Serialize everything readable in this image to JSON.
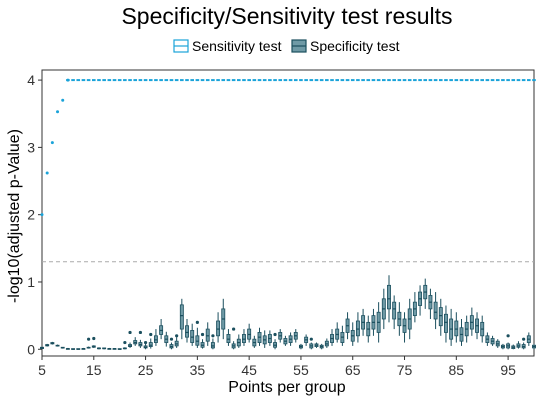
{
  "chart_data": {
    "type": "boxplot",
    "title": "Specificity/Sensitivity test results",
    "xlabel": "Points per group",
    "ylabel": "-log10(adjusted p-Value)",
    "xlim": [
      5,
      100
    ],
    "ylim": [
      -0.1,
      4.15
    ],
    "x_ticks": [
      5,
      15,
      25,
      35,
      45,
      55,
      65,
      75,
      85,
      95
    ],
    "y_ticks": [
      0,
      1,
      2,
      3,
      4
    ],
    "reference_line": {
      "y": 1.3,
      "style": "dashed",
      "color": "#aaaaaa"
    },
    "legend": {
      "position": "top"
    },
    "series": [
      {
        "name": "Sensitivity test",
        "color": "#1aa3d9",
        "fill": "#ffffff",
        "points": [
          {
            "x": 5,
            "y": 2.0
          },
          {
            "x": 6,
            "y": 2.62
          },
          {
            "x": 7,
            "y": 3.07
          },
          {
            "x": 8,
            "y": 3.53
          },
          {
            "x": 9,
            "y": 3.7
          },
          {
            "x": 10,
            "y": 4.0
          }
        ],
        "plateau": {
          "y": 4.0,
          "from": 10,
          "to": 100
        }
      },
      {
        "name": "Specificity test",
        "color": "#1b4f5e",
        "fill": "#6f9aa6",
        "boxes": [
          {
            "x": 5,
            "min": 0.01,
            "q1": 0.01,
            "median": 0.02,
            "q3": 0.03,
            "max": 0.04
          },
          {
            "x": 6,
            "min": 0.04,
            "q1": 0.05,
            "median": 0.06,
            "q3": 0.07,
            "max": 0.08
          },
          {
            "x": 7,
            "min": 0.07,
            "q1": 0.08,
            "median": 0.09,
            "q3": 0.1,
            "max": 0.11
          },
          {
            "x": 8,
            "min": 0.04,
            "q1": 0.05,
            "median": 0.05,
            "q3": 0.06,
            "max": 0.07
          },
          {
            "x": 9,
            "min": 0.01,
            "q1": 0.02,
            "median": 0.02,
            "q3": 0.03,
            "max": 0.03
          },
          {
            "x": 10,
            "min": 0.0,
            "q1": 0.0,
            "median": 0.01,
            "q3": 0.01,
            "max": 0.02
          },
          {
            "x": 11,
            "min": 0.0,
            "q1": 0.0,
            "median": 0.0,
            "q3": 0.01,
            "max": 0.01
          },
          {
            "x": 12,
            "min": 0.0,
            "q1": 0.0,
            "median": 0.0,
            "q3": 0.01,
            "max": 0.01
          },
          {
            "x": 13,
            "min": 0.0,
            "q1": 0.0,
            "median": 0.01,
            "q3": 0.01,
            "max": 0.02
          },
          {
            "x": 14,
            "min": 0.01,
            "q1": 0.02,
            "median": 0.02,
            "q3": 0.03,
            "max": 0.04,
            "outliers": [
              0.15
            ]
          },
          {
            "x": 15,
            "min": 0.02,
            "q1": 0.03,
            "median": 0.04,
            "q3": 0.05,
            "max": 0.06,
            "outliers": [
              0.16
            ]
          },
          {
            "x": 16,
            "min": 0.0,
            "q1": 0.01,
            "median": 0.01,
            "q3": 0.02,
            "max": 0.03
          },
          {
            "x": 17,
            "min": 0.0,
            "q1": 0.01,
            "median": 0.01,
            "q3": 0.02,
            "max": 0.02
          },
          {
            "x": 18,
            "min": 0.0,
            "q1": 0.0,
            "median": 0.01,
            "q3": 0.01,
            "max": 0.02
          },
          {
            "x": 19,
            "min": 0.0,
            "q1": 0.0,
            "median": 0.01,
            "q3": 0.01,
            "max": 0.01
          },
          {
            "x": 20,
            "min": 0.0,
            "q1": 0.0,
            "median": 0.0,
            "q3": 0.01,
            "max": 0.01
          },
          {
            "x": 21,
            "min": 0.0,
            "q1": 0.01,
            "median": 0.01,
            "q3": 0.02,
            "max": 0.03,
            "outliers": [
              0.1
            ]
          },
          {
            "x": 22,
            "min": 0.02,
            "q1": 0.04,
            "median": 0.05,
            "q3": 0.07,
            "max": 0.1,
            "outliers": [
              0.25
            ]
          },
          {
            "x": 23,
            "min": 0.05,
            "q1": 0.08,
            "median": 0.1,
            "q3": 0.13,
            "max": 0.18
          },
          {
            "x": 24,
            "min": 0.02,
            "q1": 0.05,
            "median": 0.07,
            "q3": 0.1,
            "max": 0.14,
            "outliers": [
              0.25
            ]
          },
          {
            "x": 25,
            "min": 0.0,
            "q1": 0.02,
            "median": 0.03,
            "q3": 0.05,
            "max": 0.08,
            "outliers": [
              0.1
            ]
          },
          {
            "x": 26,
            "min": 0.01,
            "q1": 0.04,
            "median": 0.06,
            "q3": 0.1,
            "max": 0.16,
            "outliers": [
              0.22
            ]
          },
          {
            "x": 27,
            "min": 0.05,
            "q1": 0.1,
            "median": 0.14,
            "q3": 0.2,
            "max": 0.3
          },
          {
            "x": 28,
            "min": 0.15,
            "q1": 0.22,
            "median": 0.28,
            "q3": 0.35,
            "max": 0.45
          },
          {
            "x": 29,
            "min": 0.04,
            "q1": 0.1,
            "median": 0.15,
            "q3": 0.2,
            "max": 0.26
          },
          {
            "x": 30,
            "min": 0.0,
            "q1": 0.02,
            "median": 0.04,
            "q3": 0.07,
            "max": 0.1,
            "outliers": [
              0.15
            ]
          },
          {
            "x": 31,
            "min": 0.02,
            "q1": 0.05,
            "median": 0.08,
            "q3": 0.12,
            "max": 0.18,
            "outliers": [
              0.2
            ]
          },
          {
            "x": 32,
            "min": 0.15,
            "q1": 0.3,
            "median": 0.5,
            "q3": 0.66,
            "max": 0.75
          },
          {
            "x": 33,
            "min": 0.1,
            "q1": 0.18,
            "median": 0.25,
            "q3": 0.35,
            "max": 0.45
          },
          {
            "x": 34,
            "min": 0.05,
            "q1": 0.1,
            "median": 0.18,
            "q3": 0.28,
            "max": 0.38
          },
          {
            "x": 35,
            "min": 0.02,
            "q1": 0.06,
            "median": 0.12,
            "q3": 0.2,
            "max": 0.32,
            "outliers": [
              0.4
            ]
          },
          {
            "x": 36,
            "min": 0.01,
            "q1": 0.03,
            "median": 0.06,
            "q3": 0.1,
            "max": 0.15,
            "outliers": [
              0.22
            ]
          },
          {
            "x": 37,
            "min": 0.05,
            "q1": 0.12,
            "median": 0.2,
            "q3": 0.3,
            "max": 0.4
          },
          {
            "x": 38,
            "min": 0.0,
            "q1": 0.02,
            "median": 0.05,
            "q3": 0.1,
            "max": 0.16,
            "outliers": [
              0.2
            ]
          },
          {
            "x": 39,
            "min": 0.1,
            "q1": 0.2,
            "median": 0.3,
            "q3": 0.42,
            "max": 0.55
          },
          {
            "x": 40,
            "min": 0.15,
            "q1": 0.3,
            "median": 0.45,
            "q3": 0.6,
            "max": 0.75
          },
          {
            "x": 41,
            "min": 0.05,
            "q1": 0.1,
            "median": 0.15,
            "q3": 0.22,
            "max": 0.3
          },
          {
            "x": 42,
            "min": 0.0,
            "q1": 0.02,
            "median": 0.05,
            "q3": 0.08,
            "max": 0.12,
            "outliers": [
              0.3
            ]
          },
          {
            "x": 43,
            "min": 0.02,
            "q1": 0.05,
            "median": 0.1,
            "q3": 0.15,
            "max": 0.22
          },
          {
            "x": 44,
            "min": 0.05,
            "q1": 0.1,
            "median": 0.15,
            "q3": 0.22,
            "max": 0.3
          },
          {
            "x": 45,
            "min": 0.1,
            "q1": 0.15,
            "median": 0.22,
            "q3": 0.3,
            "max": 0.38
          },
          {
            "x": 46,
            "min": 0.02,
            "q1": 0.05,
            "median": 0.1,
            "q3": 0.15,
            "max": 0.2
          },
          {
            "x": 47,
            "min": 0.05,
            "q1": 0.1,
            "median": 0.18,
            "q3": 0.25,
            "max": 0.32
          },
          {
            "x": 48,
            "min": 0.02,
            "q1": 0.08,
            "median": 0.14,
            "q3": 0.2,
            "max": 0.28
          },
          {
            "x": 49,
            "min": 0.05,
            "q1": 0.1,
            "median": 0.16,
            "q3": 0.22,
            "max": 0.28
          },
          {
            "x": 50,
            "min": 0.0,
            "q1": 0.03,
            "median": 0.06,
            "q3": 0.1,
            "max": 0.15,
            "outliers": [
              0.22
            ]
          },
          {
            "x": 51,
            "min": 0.1,
            "q1": 0.15,
            "median": 0.2,
            "q3": 0.25,
            "max": 0.3
          },
          {
            "x": 52,
            "min": 0.05,
            "q1": 0.08,
            "median": 0.12,
            "q3": 0.16,
            "max": 0.2
          },
          {
            "x": 53,
            "min": 0.05,
            "q1": 0.1,
            "median": 0.15,
            "q3": 0.2,
            "max": 0.25
          },
          {
            "x": 54,
            "min": 0.1,
            "q1": 0.15,
            "median": 0.2,
            "q3": 0.25,
            "max": 0.3
          },
          {
            "x": 55,
            "min": 0.0,
            "q1": 0.02,
            "median": 0.04,
            "q3": 0.06,
            "max": 0.08
          },
          {
            "x": 56,
            "min": 0.05,
            "q1": 0.1,
            "median": 0.14,
            "q3": 0.18,
            "max": 0.22
          },
          {
            "x": 57,
            "min": 0.0,
            "q1": 0.02,
            "median": 0.05,
            "q3": 0.08,
            "max": 0.1,
            "outliers": [
              0.15
            ]
          },
          {
            "x": 58,
            "min": 0.02,
            "q1": 0.04,
            "median": 0.06,
            "q3": 0.08,
            "max": 0.1
          },
          {
            "x": 59,
            "min": 0.0,
            "q1": 0.02,
            "median": 0.04,
            "q3": 0.06,
            "max": 0.08
          },
          {
            "x": 60,
            "min": 0.02,
            "q1": 0.05,
            "median": 0.08,
            "q3": 0.12,
            "max": 0.16
          },
          {
            "x": 61,
            "min": 0.05,
            "q1": 0.1,
            "median": 0.16,
            "q3": 0.22,
            "max": 0.3
          },
          {
            "x": 62,
            "min": 0.1,
            "q1": 0.15,
            "median": 0.22,
            "q3": 0.3,
            "max": 0.4
          },
          {
            "x": 63,
            "min": 0.05,
            "q1": 0.1,
            "median": 0.18,
            "q3": 0.25,
            "max": 0.35
          },
          {
            "x": 64,
            "min": 0.15,
            "q1": 0.25,
            "median": 0.35,
            "q3": 0.45,
            "max": 0.55
          },
          {
            "x": 65,
            "min": 0.05,
            "q1": 0.12,
            "median": 0.2,
            "q3": 0.28,
            "max": 0.4
          },
          {
            "x": 66,
            "min": 0.1,
            "q1": 0.2,
            "median": 0.3,
            "q3": 0.42,
            "max": 0.55
          },
          {
            "x": 67,
            "min": 0.2,
            "q1": 0.3,
            "median": 0.4,
            "q3": 0.5,
            "max": 0.6
          },
          {
            "x": 68,
            "min": 0.1,
            "q1": 0.2,
            "median": 0.3,
            "q3": 0.4,
            "max": 0.5
          },
          {
            "x": 69,
            "min": 0.2,
            "q1": 0.3,
            "median": 0.4,
            "q3": 0.5,
            "max": 0.6
          },
          {
            "x": 70,
            "min": 0.1,
            "q1": 0.25,
            "median": 0.4,
            "q3": 0.55,
            "max": 0.7
          },
          {
            "x": 71,
            "min": 0.3,
            "q1": 0.45,
            "median": 0.6,
            "q3": 0.75,
            "max": 0.9
          },
          {
            "x": 72,
            "min": 0.4,
            "q1": 0.6,
            "median": 0.75,
            "q3": 0.95,
            "max": 1.1
          },
          {
            "x": 73,
            "min": 0.3,
            "q1": 0.45,
            "median": 0.6,
            "q3": 0.7,
            "max": 0.8
          },
          {
            "x": 74,
            "min": 0.2,
            "q1": 0.35,
            "median": 0.45,
            "q3": 0.55,
            "max": 0.7
          },
          {
            "x": 75,
            "min": 0.1,
            "q1": 0.25,
            "median": 0.35,
            "q3": 0.45,
            "max": 0.55
          },
          {
            "x": 76,
            "min": 0.15,
            "q1": 0.3,
            "median": 0.45,
            "q3": 0.6,
            "max": 0.75
          },
          {
            "x": 77,
            "min": 0.4,
            "q1": 0.5,
            "median": 0.6,
            "q3": 0.7,
            "max": 0.85
          },
          {
            "x": 78,
            "min": 0.5,
            "q1": 0.65,
            "median": 0.75,
            "q3": 0.85,
            "max": 0.95
          },
          {
            "x": 79,
            "min": 0.6,
            "q1": 0.75,
            "median": 0.85,
            "q3": 0.95,
            "max": 1.05
          },
          {
            "x": 80,
            "min": 0.45,
            "q1": 0.6,
            "median": 0.7,
            "q3": 0.8,
            "max": 0.9
          },
          {
            "x": 81,
            "min": 0.3,
            "q1": 0.45,
            "median": 0.55,
            "q3": 0.7,
            "max": 0.85
          },
          {
            "x": 82,
            "min": 0.2,
            "q1": 0.35,
            "median": 0.5,
            "q3": 0.62,
            "max": 0.75
          },
          {
            "x": 83,
            "min": 0.1,
            "q1": 0.25,
            "median": 0.4,
            "q3": 0.52,
            "max": 0.65
          },
          {
            "x": 84,
            "min": 0.05,
            "q1": 0.15,
            "median": 0.3,
            "q3": 0.45,
            "max": 0.6
          },
          {
            "x": 85,
            "min": 0.1,
            "q1": 0.2,
            "median": 0.3,
            "q3": 0.42,
            "max": 0.55
          },
          {
            "x": 86,
            "min": 0.05,
            "q1": 0.12,
            "median": 0.22,
            "q3": 0.32,
            "max": 0.45
          },
          {
            "x": 87,
            "min": 0.1,
            "q1": 0.2,
            "median": 0.3,
            "q3": 0.4,
            "max": 0.5
          },
          {
            "x": 88,
            "min": 0.2,
            "q1": 0.3,
            "median": 0.4,
            "q3": 0.5,
            "max": 0.62
          },
          {
            "x": 89,
            "min": 0.15,
            "q1": 0.25,
            "median": 0.35,
            "q3": 0.45,
            "max": 0.55
          },
          {
            "x": 90,
            "min": 0.1,
            "q1": 0.2,
            "median": 0.3,
            "q3": 0.4,
            "max": 0.5
          },
          {
            "x": 91,
            "min": 0.05,
            "q1": 0.1,
            "median": 0.15,
            "q3": 0.2,
            "max": 0.25
          },
          {
            "x": 92,
            "min": 0.05,
            "q1": 0.08,
            "median": 0.12,
            "q3": 0.16,
            "max": 0.2
          },
          {
            "x": 93,
            "min": 0.02,
            "q1": 0.05,
            "median": 0.08,
            "q3": 0.12,
            "max": 0.15
          },
          {
            "x": 94,
            "min": 0.0,
            "q1": 0.02,
            "median": 0.04,
            "q3": 0.06,
            "max": 0.08
          },
          {
            "x": 95,
            "min": 0.0,
            "q1": 0.02,
            "median": 0.05,
            "q3": 0.08,
            "max": 0.1,
            "outliers": [
              0.2
            ]
          },
          {
            "x": 96,
            "min": 0.0,
            "q1": 0.01,
            "median": 0.03,
            "q3": 0.05,
            "max": 0.07
          },
          {
            "x": 97,
            "min": 0.01,
            "q1": 0.03,
            "median": 0.05,
            "q3": 0.08,
            "max": 0.12
          },
          {
            "x": 98,
            "min": 0.0,
            "q1": 0.02,
            "median": 0.04,
            "q3": 0.07,
            "max": 0.1,
            "outliers": [
              0.15
            ]
          },
          {
            "x": 99,
            "min": 0.05,
            "q1": 0.1,
            "median": 0.15,
            "q3": 0.2,
            "max": 0.25
          },
          {
            "x": 100,
            "min": 0.0,
            "q1": 0.02,
            "median": 0.04,
            "q3": 0.06,
            "max": 0.08
          }
        ]
      }
    ]
  }
}
